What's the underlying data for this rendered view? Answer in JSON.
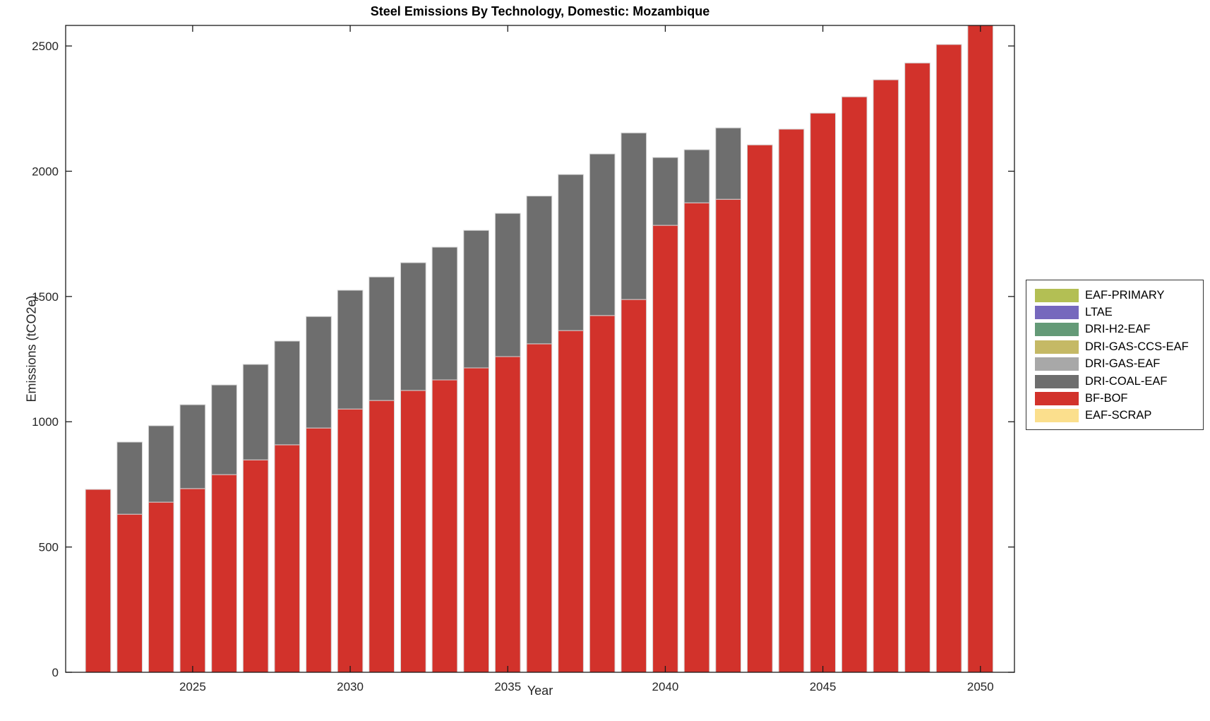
{
  "chart_data": {
    "type": "bar",
    "stacked": true,
    "title": "Steel Emissions By Technology, Domestic: Mozambique",
    "xlabel": "Year",
    "ylabel": "Emissions (tCO2e)",
    "xlim": [
      2020.97,
      2051.08
    ],
    "ylim": [
      0,
      2582
    ],
    "yticks": [
      0,
      500,
      1000,
      1500,
      2000,
      2500
    ],
    "xticks": [
      2025,
      2030,
      2035,
      2040,
      2045,
      2050
    ],
    "grid": false,
    "legend_position": "right-outside",
    "bar_width_fraction": 0.8,
    "categories": [
      2022,
      2023,
      2024,
      2025,
      2026,
      2027,
      2028,
      2029,
      2030,
      2031,
      2032,
      2033,
      2034,
      2035,
      2036,
      2037,
      2038,
      2039,
      2040,
      2041,
      2042,
      2043,
      2044,
      2045,
      2046,
      2047,
      2048,
      2049,
      2050
    ],
    "series": [
      {
        "name": "BF-BOF",
        "color": "#d2322b",
        "values": [
          730,
          631,
          679,
          733,
          789,
          848,
          908,
          975,
          1051,
          1085,
          1125,
          1167,
          1215,
          1260,
          1311,
          1364,
          1424,
          1488,
          1784,
          1874,
          1888,
          2105,
          2168,
          2232,
          2297,
          2365,
          2432,
          2506,
          2582
        ]
      },
      {
        "name": "DRI-COAL-EAF",
        "color": "#6e6e6e",
        "values": [
          0,
          288,
          305,
          335,
          358,
          381,
          414,
          445,
          474,
          493,
          510,
          530,
          549,
          572,
          590,
          623,
          645,
          665,
          271,
          212,
          285,
          0,
          0,
          0,
          0,
          0,
          0,
          0,
          0
        ]
      }
    ],
    "legend": [
      {
        "label": "EAF-PRIMARY",
        "color": "#b3bf54"
      },
      {
        "label": "LTAE",
        "color": "#7668bd"
      },
      {
        "label": "DRI-H2-EAF",
        "color": "#649a77"
      },
      {
        "label": "DRI-GAS-CCS-EAF",
        "color": "#c5b965"
      },
      {
        "label": "DRI-GAS-EAF",
        "color": "#a8a8a8"
      },
      {
        "label": "DRI-COAL-EAF",
        "color": "#6e6e6e"
      },
      {
        "label": "BF-BOF",
        "color": "#d2322b"
      },
      {
        "label": "EAF-SCRAP",
        "color": "#fbdf8d"
      }
    ],
    "axis_color": "#1a1a1a",
    "tick_label_color": "#262626",
    "bar_edge_color": "#d4d4d4"
  }
}
